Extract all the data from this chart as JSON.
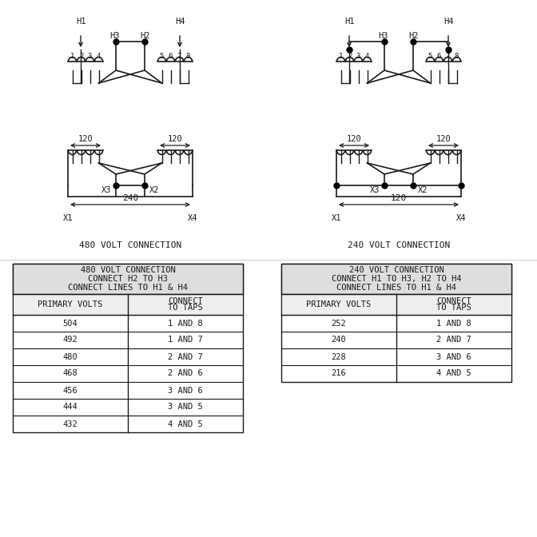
{
  "bg_color": "#ffffff",
  "line_color": "#1a1a1a",
  "dot_color": "#000000",
  "title1": "480 VOLT CONNECTION",
  "title2": "240 VOLT CONNECTION",
  "table1_header": "480 VOLT CONNECTION\nCONNECT H2 TO H3\nCONNECT LINES TO H1 & H4",
  "table2_header": "240 VOLT CONNECTION\nCONNECT H1 TO H3, H2 TO H4\nCONNECT LINES TO H1 & H4",
  "table1_col1": [
    "PRIMARY VOLTS",
    "504",
    "492",
    "480",
    "468",
    "456",
    "444",
    "432"
  ],
  "table1_col2": [
    "CONNECT\nTO TAPS",
    "1 AND 8",
    "1 AND 7",
    "2 AND 7",
    "2 AND 6",
    "3 AND 6",
    "3 AND 5",
    "4 AND 5"
  ],
  "table2_col1": [
    "PRIMARY VOLTS",
    "252",
    "240",
    "228",
    "216"
  ],
  "table2_col2": [
    "CONNECT\nTO TAPS",
    "1 AND 8",
    "2 AND 7",
    "3 AND 6",
    "4 AND 5"
  ]
}
